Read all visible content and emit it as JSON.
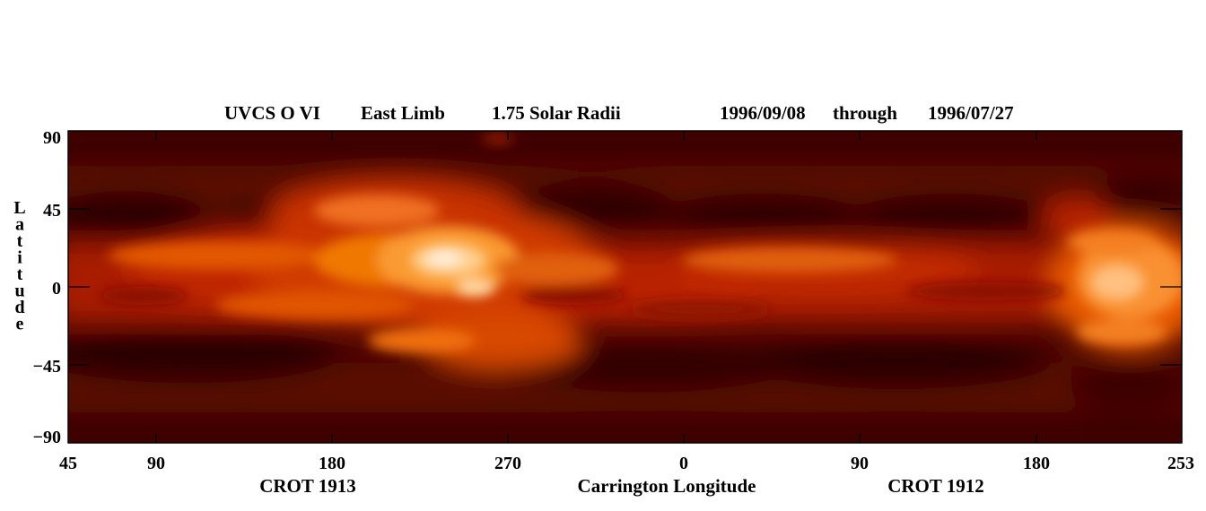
{
  "chart_data": {
    "type": "heatmap",
    "title_parts": {
      "instrument": "UVCS O VI",
      "limb": "East Limb",
      "height": "1.75 Solar Radii",
      "start_date": "1996/09/08",
      "through_word": "through",
      "end_date": "1996/07/27"
    },
    "ylabel": "Latitude",
    "xlabel": "Carrington Longitude",
    "rotation_labels": [
      "CROT 1913",
      "CROT 1912"
    ],
    "yticks": [
      "90",
      "45",
      "0",
      "−45",
      "−90"
    ],
    "xticks": [
      "45",
      "90",
      "180",
      "270",
      "0",
      "90",
      "180",
      "253"
    ],
    "ylim": [
      -90,
      90
    ],
    "colormap": "red-temperature",
    "colors": {
      "dark": "#2a0000",
      "mid": "#a81800",
      "bright": "#ff7a10",
      "brightest": "#ffe8c8"
    },
    "structure": [
      {
        "feature": "streamer belt",
        "longitude_range": [
          "45 (CROT 1913)",
          "253 (CROT 1912)"
        ],
        "latitude_range": [
          -25,
          25
        ],
        "intensity": "bright"
      },
      {
        "feature": "peak emission",
        "longitude": "~240 (CROT 1913)",
        "latitude": 15,
        "intensity": "brightest"
      },
      {
        "feature": "secondary peak",
        "longitude": "~230-253 (CROT 1912)",
        "latitude": 0,
        "intensity": "bright"
      },
      {
        "feature": "northern coronal hole",
        "latitude": 45,
        "intensity": "dark"
      },
      {
        "feature": "southern coronal hole",
        "latitude": -45,
        "intensity": "dark"
      },
      {
        "feature": "polar regions",
        "latitude": [
          -90,
          90
        ],
        "intensity": "dark"
      }
    ]
  }
}
